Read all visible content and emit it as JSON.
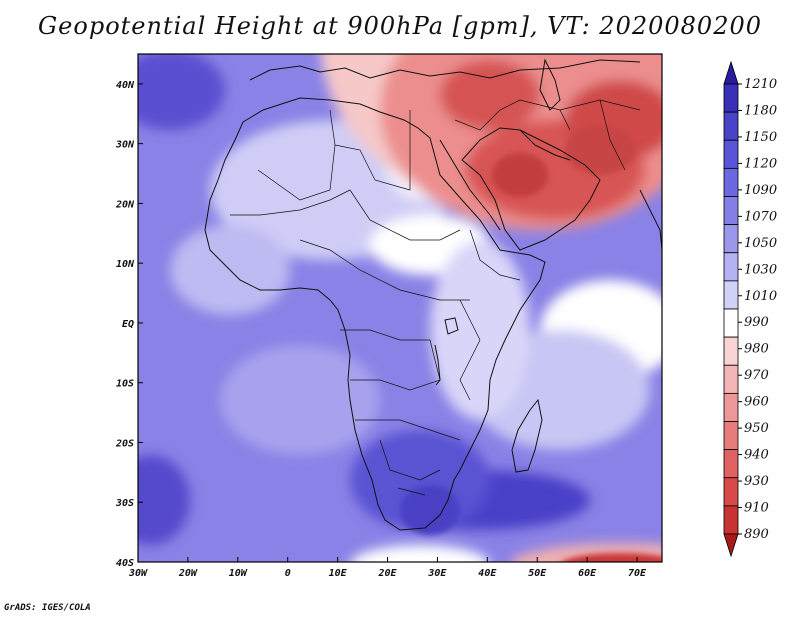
{
  "title": "Geopotential Height at 900hPa [gpm], VT: 2020080200",
  "credit": "GrADS: IGES/COLA",
  "map": {
    "region": "Africa and Middle East",
    "lon_range": [
      -30,
      75
    ],
    "lat_range": [
      -40,
      45
    ],
    "x_ticks": [
      "30W",
      "20W",
      "10W",
      "0",
      "10E",
      "20E",
      "30E",
      "40E",
      "50E",
      "60E",
      "70E"
    ],
    "y_ticks": [
      "40N",
      "30N",
      "20N",
      "10N",
      "EQ",
      "10S",
      "20S",
      "30S",
      "40S"
    ]
  },
  "colorbar": {
    "levels": [
      "1210",
      "1180",
      "1150",
      "1120",
      "1090",
      "1070",
      "1050",
      "1030",
      "1010",
      "990",
      "980",
      "970",
      "960",
      "950",
      "940",
      "930",
      "910",
      "890"
    ],
    "colors": [
      "#2a1aa0",
      "#3a30b8",
      "#4a42c8",
      "#5a54d8",
      "#6e68e0",
      "#8480e6",
      "#9c98ec",
      "#b4b2f2",
      "#d2d2f8",
      "#ffffff",
      "#f8d4d4",
      "#f2b4b4",
      "#ec9898",
      "#e67c7c",
      "#e06262",
      "#d84a4a",
      "#c83232",
      "#aa1a1a"
    ]
  },
  "colors": {
    "ocean_base": "#8a82e6",
    "land_base": "#a8a4ee",
    "high_pressure": "#4a40cc",
    "low_pressure": "#cc3a3a"
  }
}
